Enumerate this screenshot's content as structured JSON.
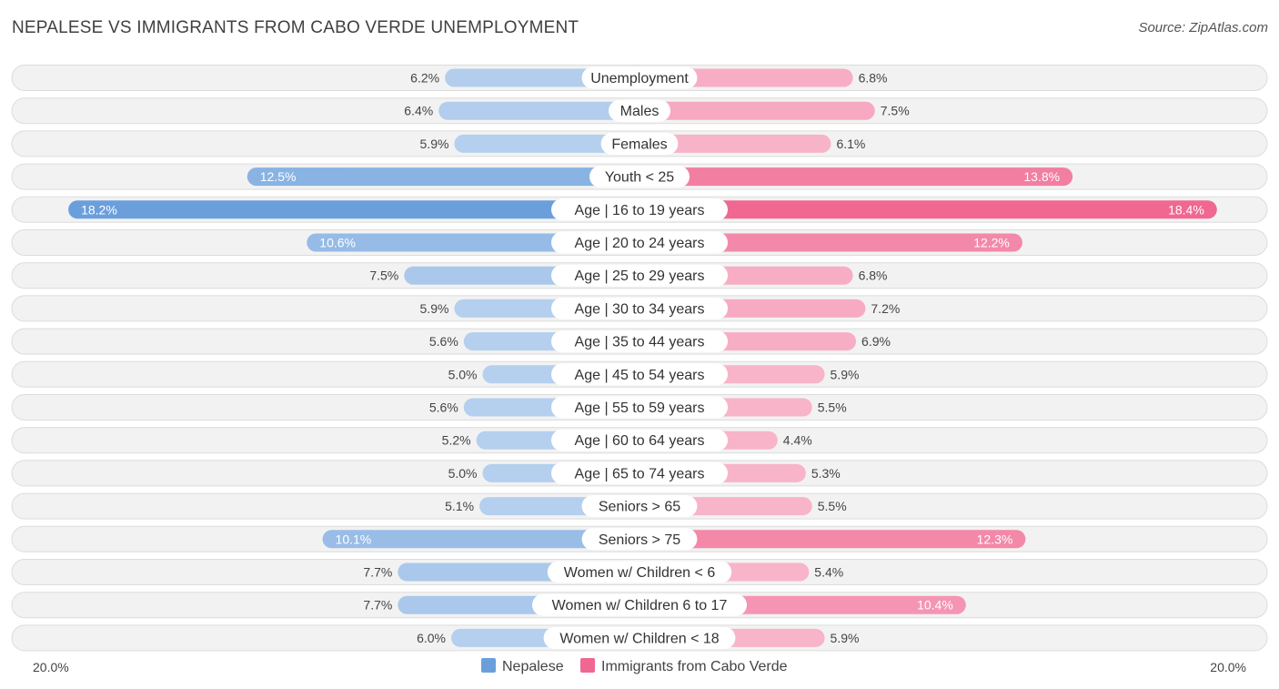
{
  "title": "NEPALESE VS IMMIGRANTS FROM CABO VERDE UNEMPLOYMENT",
  "source": "Source: ZipAtlas.com",
  "chart_data": {
    "type": "bar",
    "orientation": "horizontal-diverging",
    "categories": [
      "Unemployment",
      "Males",
      "Females",
      "Youth < 25",
      "Age | 16 to 19 years",
      "Age | 20 to 24 years",
      "Age | 25 to 29 years",
      "Age | 30 to 34 years",
      "Age | 35 to 44 years",
      "Age | 45 to 54 years",
      "Age | 55 to 59 years",
      "Age | 60 to 64 years",
      "Age | 65 to 74 years",
      "Seniors > 65",
      "Seniors > 75",
      "Women w/ Children < 6",
      "Women w/ Children 6 to 17",
      "Women w/ Children < 18"
    ],
    "series": [
      {
        "name": "Nepalese",
        "color": "#6a9fdc",
        "values": [
          6.2,
          6.4,
          5.9,
          12.5,
          18.2,
          10.6,
          7.5,
          5.9,
          5.6,
          5.0,
          5.6,
          5.2,
          5.0,
          5.1,
          10.1,
          7.7,
          7.7,
          6.0
        ],
        "labels": [
          "6.2%",
          "6.4%",
          "5.9%",
          "12.5%",
          "18.2%",
          "10.6%",
          "7.5%",
          "5.9%",
          "5.6%",
          "5.0%",
          "5.6%",
          "5.2%",
          "5.0%",
          "5.1%",
          "10.1%",
          "7.7%",
          "7.7%",
          "6.0%"
        ]
      },
      {
        "name": "Immigrants from Cabo Verde",
        "color": "#f06892",
        "values": [
          6.8,
          7.5,
          6.1,
          13.8,
          18.4,
          12.2,
          6.8,
          7.2,
          6.9,
          5.9,
          5.5,
          4.4,
          5.3,
          5.5,
          12.3,
          5.4,
          10.4,
          5.9
        ],
        "labels": [
          "6.8%",
          "7.5%",
          "6.1%",
          "13.8%",
          "18.4%",
          "12.2%",
          "6.8%",
          "7.2%",
          "6.9%",
          "5.9%",
          "5.5%",
          "4.4%",
          "5.3%",
          "5.5%",
          "12.3%",
          "5.4%",
          "10.4%",
          "5.9%"
        ]
      }
    ],
    "axis_max": 20.0,
    "axis_left_label": "20.0%",
    "axis_right_label": "20.0%",
    "legend_position": "bottom-center"
  }
}
